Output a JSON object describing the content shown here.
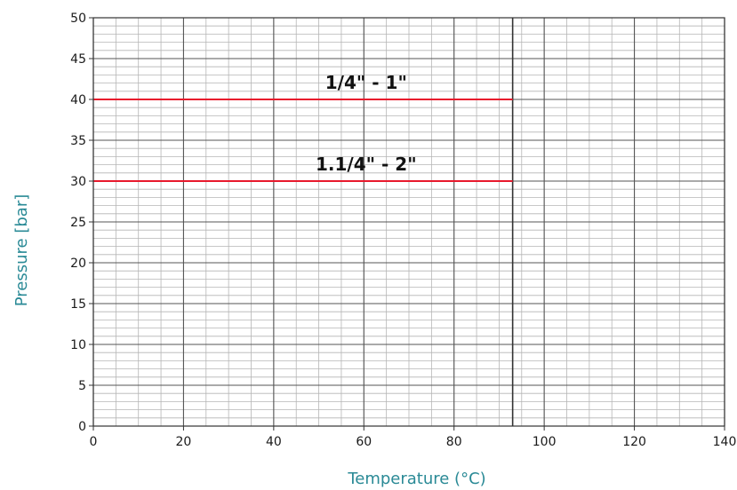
{
  "chart_data": {
    "type": "line",
    "title": "",
    "xlabel": "Temperature (°C)",
    "ylabel": "Pressure [bar]",
    "xlim": [
      0,
      140
    ],
    "ylim": [
      0,
      50
    ],
    "x_ticks": [
      0,
      20,
      40,
      60,
      80,
      100,
      120,
      140
    ],
    "y_ticks": [
      0,
      5,
      10,
      15,
      20,
      25,
      30,
      35,
      40,
      45,
      50
    ],
    "grid": true,
    "minor_grid": true,
    "series": [
      {
        "name": "1/4\" - 1\"",
        "x": [
          0,
          93
        ],
        "y": [
          40,
          40
        ],
        "color": "#e8192c"
      },
      {
        "name": "1.1/4\" - 2\"",
        "x": [
          0,
          93
        ],
        "y": [
          30,
          30
        ],
        "color": "#e8192c"
      }
    ],
    "reference_line": {
      "x": 93
    },
    "colors": {
      "axis_title": "#2a8a96",
      "grid_major": "#555555",
      "grid_minor": "#b5b5b5",
      "series": "#e8192c"
    }
  }
}
